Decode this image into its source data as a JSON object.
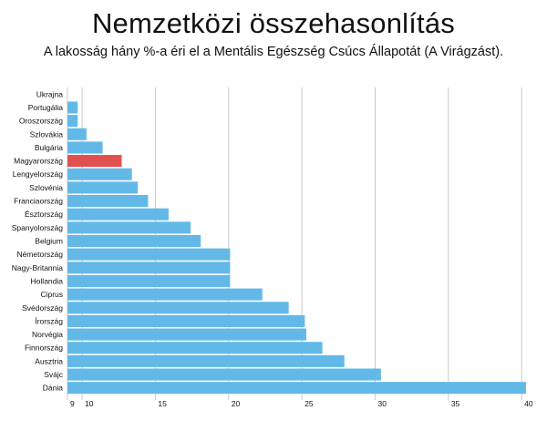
{
  "title": "Nemzetközi összehasonlítás",
  "subtitle": "A lakosság hány %-a éri el a Mentális Egészség Csúcs Állapotát (A Virágzást).",
  "chart_data": {
    "type": "bar",
    "orientation": "horizontal",
    "title": "Nemzetközi összehasonlítás",
    "subtitle": "A lakosság hány %-a éri el a Mentális Egészség Csúcs Állapotát (A Virágzást).",
    "categories": [
      "Ukrajna",
      "Portugália",
      "Oroszország",
      "Szlovákia",
      "Bulgária",
      "Magyarország",
      "Lengyelország",
      "Szlovénia",
      "Franciaország",
      "Észtország",
      "Spanyolország",
      "Belgium",
      "Németország",
      "Nagy-Britannia",
      "Hollandia",
      "Ciprus",
      "Svédország",
      "Írország",
      "Norvégia",
      "Finnország",
      "Ausztria",
      "Svájc",
      "Dánia"
    ],
    "values": [
      9.0,
      9.7,
      9.7,
      10.3,
      11.4,
      12.7,
      13.4,
      13.8,
      14.5,
      15.9,
      17.4,
      18.1,
      20.1,
      20.1,
      20.1,
      22.3,
      24.1,
      25.2,
      25.3,
      26.4,
      27.9,
      30.4,
      40.3
    ],
    "highlight": "Magyarország",
    "colors": {
      "bar": "#62b9e8",
      "highlight": "#e0504f",
      "grid": "#c9c9c9"
    },
    "xticks": [
      9,
      10,
      15,
      20,
      25,
      30,
      35,
      40
    ],
    "xlim": [
      9,
      40.3
    ],
    "grid": true
  }
}
